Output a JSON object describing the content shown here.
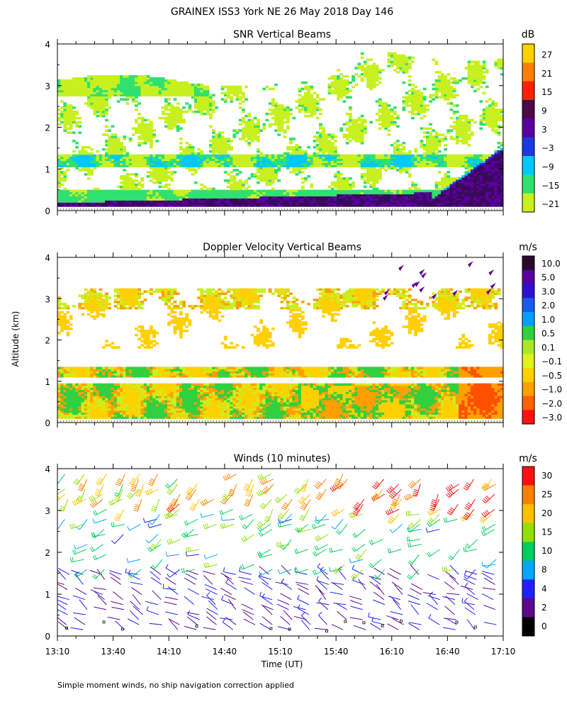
{
  "figure": {
    "title": "GRAINEX ISS3 York NE  26 May 2018 Day 146",
    "ylabel": "Altitude (km)",
    "xlabel": "Time (UT)",
    "footnote": "Simple moment winds, no ship navigation correction applied",
    "x_ticks": [
      "13:10",
      "13:40",
      "14:10",
      "14:40",
      "15:10",
      "15:40",
      "16:10",
      "16:40",
      "17:10"
    ],
    "y_ticks": [
      "0",
      "1",
      "2",
      "3",
      "4"
    ]
  },
  "chart_data": [
    {
      "type": "heatmap",
      "title": "SNR Vertical Beams",
      "colorbar_unit": "dB",
      "colorbar_labels": [
        "27",
        "21",
        "15",
        "9",
        "3",
        "−3",
        "−9",
        "−15",
        "−21"
      ],
      "colorbar_colors": [
        "#ffd000",
        "#ff8000",
        "#ff2000",
        "#4a0a4a",
        "#5a00a0",
        "#1a3ae0",
        "#00c8ff",
        "#30e070",
        "#c8f020"
      ],
      "xrange_minutes": [
        0,
        240
      ],
      "ylim": [
        0,
        4
      ],
      "palette": {
        "low": "#c8f020",
        "mid": "#30e070",
        "cyan": "#00c8ff",
        "blue": "#1a3ae0",
        "purple": "#5a00a0",
        "deep": "#3a0a5a"
      }
    },
    {
      "type": "heatmap",
      "title": "Doppler Velocity Vertical Beams",
      "colorbar_unit": "m/s",
      "colorbar_labels": [
        "10.0",
        "5.0",
        "3.0",
        "2.0",
        "1.0",
        "0.5",
        "0.1",
        "−0.1",
        "−0.5",
        "−1.0",
        "−2.0",
        "−3.0"
      ],
      "colorbar_colors": [
        "#2a0a2a",
        "#5a00a0",
        "#3010d0",
        "#1a5af0",
        "#00a0ff",
        "#30d040",
        "#a8e828",
        "#e0f020",
        "#ffd000",
        "#ffa000",
        "#ff6000",
        "#ff1010"
      ],
      "xrange_minutes": [
        0,
        240
      ],
      "ylim": [
        0,
        4
      ],
      "palette": {
        "yellowgreen": "#c8f020",
        "green": "#30d040",
        "yellow": "#ffd000",
        "orange": "#ffa000",
        "red": "#ff5000",
        "purple": "#5a00a0"
      }
    },
    {
      "type": "scatter",
      "title": "Winds (10 minutes)",
      "colorbar_unit": "m/s",
      "colorbar_labels": [
        "30",
        "25",
        "20",
        "15",
        "10",
        "8",
        "4",
        "2",
        "0"
      ],
      "colorbar_colors": [
        "#ff1010",
        "#ff8000",
        "#ffc000",
        "#90e000",
        "#00d060",
        "#00a8ff",
        "#2020ff",
        "#5a0a8a",
        "#000000"
      ],
      "xrange_minutes": [
        0,
        240
      ],
      "ylim": [
        0,
        4
      ],
      "wind_profile": [
        {
          "max_alt_km": 1.5,
          "speed_ms": 4,
          "direction_deg": 300
        },
        {
          "max_alt_km": 3.0,
          "speed_ms": 12,
          "direction_deg": 240
        },
        {
          "max_alt_km": 4.0,
          "speed_ms": 22,
          "direction_deg": 220
        }
      ]
    }
  ]
}
